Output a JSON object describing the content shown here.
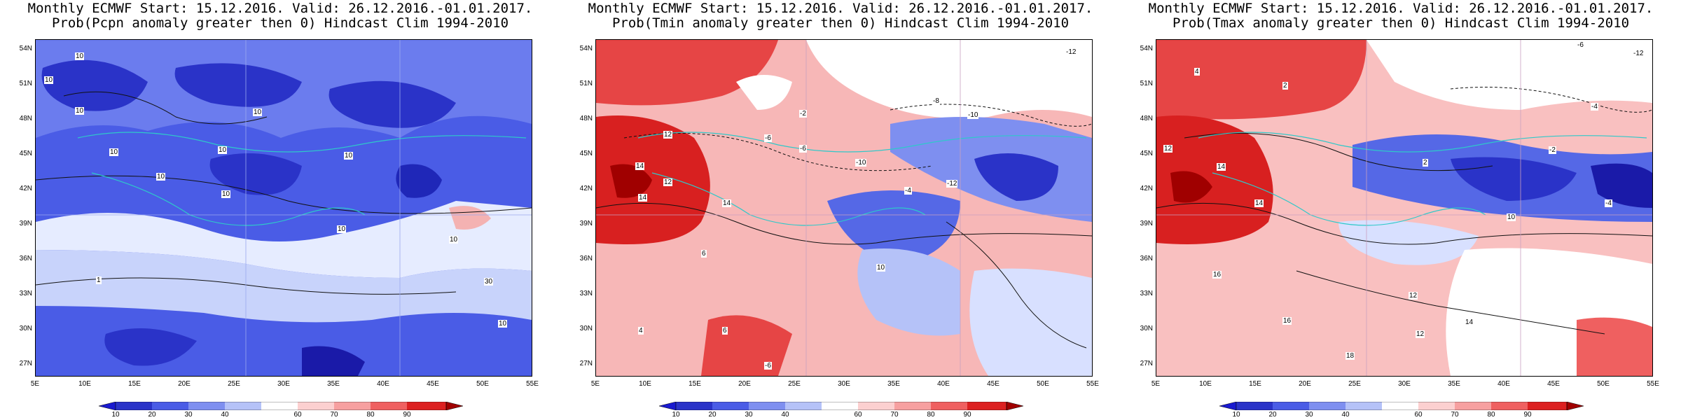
{
  "panels": [
    {
      "title_line1": "Monthly ECMWF Start: 15.12.2016. Valid: 26.12.2016.-01.01.2017.",
      "title_line2": "Prob(Pcpn anomaly greater then 0) Hindcast Clim 1994-2010",
      "base_color": "#3c4be0",
      "contour_labels": [
        "10",
        "10",
        "10",
        "10",
        "10",
        "10",
        "10",
        "10",
        "10",
        "10",
        "1",
        "10",
        "10",
        "30"
      ]
    },
    {
      "title_line1": "Monthly ECMWF Start: 15.12.2016. Valid: 26.12.2016.-01.01.2017.",
      "title_line2": "Prob(Tmin anomaly greater then 0) Hindcast Clim 1994-2010",
      "base_color": "#f4a8a8",
      "contour_labels": [
        "-12",
        "-2",
        "-6",
        "-8",
        "-10",
        "12",
        "14",
        "14",
        "12",
        "-10",
        "-6",
        "-12",
        "-4",
        "14",
        "6",
        "4",
        "6",
        "10",
        "-6"
      ]
    },
    {
      "title_line1": "Monthly ECMWF Start: 15.12.2016. Valid: 26.12.2016.-01.01.2017.",
      "title_line2": "Prob(Tmax anomaly greater then 0) Hindcast Clim 1994-2010",
      "base_color": "#f6b3b3",
      "contour_labels": [
        "-6",
        "-12",
        "4",
        "2",
        "-4",
        "12",
        "14",
        "10",
        "2",
        "-2",
        "14",
        "16",
        "12",
        "14",
        "16",
        "18",
        "12",
        "-4"
      ]
    }
  ],
  "lat_labels": [
    "54N",
    "51N",
    "48N",
    "45N",
    "42N",
    "39N",
    "36N",
    "33N",
    "30N",
    "27N"
  ],
  "lon_labels": [
    "5E",
    "10E",
    "15E",
    "20E",
    "25E",
    "30E",
    "35E",
    "40E",
    "45E",
    "50E",
    "55E"
  ],
  "colorbar": {
    "ticks": [
      "10",
      "20",
      "30",
      "40",
      "60",
      "70",
      "80",
      "90"
    ],
    "colors": [
      "#1a1ad0",
      "#3c4be0",
      "#6b7cee",
      "#9fb0f5",
      "#d8e0ff",
      "#ffffff",
      "#ffd0d0",
      "#f99a9a",
      "#ef5a5a",
      "#d81a1a",
      "#a00000"
    ]
  }
}
